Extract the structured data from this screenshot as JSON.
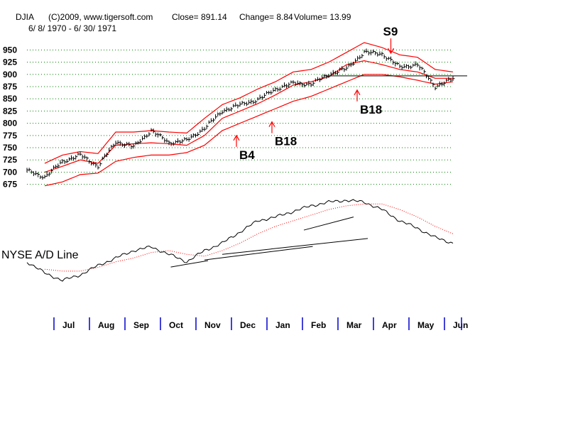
{
  "header": {
    "ticker": "DJIA",
    "source": "(C)2009, www.tigersoft.com",
    "close": "Close=  891.14",
    "change": "Change= 8.84",
    "volume": "Volume= 13.99",
    "date_range": "6/ 8/ 1970 - 6/ 30/ 1971"
  },
  "ad_line_label": "NYSE A/D Line",
  "colors": {
    "price": "#000000",
    "band": "#ff0000",
    "grid": "#008000",
    "month_tick": "#0000cc",
    "trendline": "#000000"
  },
  "chart_data": [
    {
      "type": "line",
      "name": "DJIA",
      "ylim": [
        660,
        965
      ],
      "yticks": [
        675,
        700,
        725,
        750,
        775,
        800,
        825,
        850,
        875,
        900,
        925,
        950
      ],
      "grid": "horizontal dotted",
      "x_months": [
        "Jul",
        "Aug",
        "Sep",
        "Oct",
        "Nov",
        "Dec",
        "Jan",
        "Feb",
        "Mar",
        "Apr",
        "May",
        "Jun"
      ],
      "x": [
        "Jun",
        "Jul",
        "Jul",
        "Aug",
        "Aug",
        "Sep",
        "Sep",
        "Oct",
        "Oct",
        "Nov",
        "Nov",
        "Dec",
        "Dec",
        "Jan",
        "Jan",
        "Feb",
        "Feb",
        "Mar",
        "Mar",
        "Apr",
        "Apr",
        "May",
        "May",
        "Jun",
        "Jun"
      ],
      "x_pos": [
        0.0,
        0.5,
        1.0,
        1.5,
        2.0,
        2.5,
        3.0,
        3.5,
        4.0,
        4.5,
        5.0,
        5.5,
        6.0,
        6.5,
        7.0,
        7.5,
        8.0,
        8.5,
        9.0,
        9.5,
        10.0,
        10.5,
        11.0,
        11.5,
        12.0
      ],
      "close": [
        703,
        690,
        722,
        735,
        712,
        762,
        752,
        785,
        760,
        765,
        790,
        825,
        838,
        848,
        870,
        882,
        880,
        900,
        912,
        945,
        942,
        915,
        920,
        875,
        891.14
      ],
      "upper_band": [
        null,
        718,
        735,
        742,
        738,
        782,
        782,
        785,
        782,
        780,
        810,
        838,
        852,
        870,
        885,
        905,
        910,
        925,
        945,
        965,
        955,
        940,
        935,
        910,
        905
      ],
      "middle_band": [
        null,
        700,
        712,
        725,
        718,
        755,
        758,
        760,
        758,
        755,
        775,
        810,
        825,
        840,
        858,
        878,
        885,
        895,
        920,
        928,
        920,
        910,
        905,
        892,
        892
      ],
      "lower_band": [
        null,
        672,
        680,
        695,
        698,
        722,
        730,
        735,
        735,
        740,
        755,
        785,
        800,
        815,
        830,
        845,
        855,
        870,
        885,
        900,
        900,
        895,
        888,
        880,
        885
      ],
      "reference_line": 897,
      "annotations": [
        {
          "label": "S9",
          "x_pos": 10.25,
          "y": 962,
          "direction": "down"
        },
        {
          "label": "B4",
          "x_pos": 5.9,
          "y": 775,
          "direction": "up"
        },
        {
          "label": "B18",
          "x_pos": 6.9,
          "y": 803,
          "direction": "up"
        },
        {
          "label": "B18",
          "x_pos": 9.3,
          "y": 868,
          "direction": "up"
        }
      ]
    },
    {
      "type": "line",
      "name": "NYSE A/D Line",
      "x_pos": [
        0.0,
        0.5,
        1.0,
        1.5,
        2.0,
        2.5,
        3.0,
        3.5,
        4.0,
        4.5,
        5.0,
        5.5,
        6.0,
        6.5,
        7.0,
        7.5,
        8.0,
        8.5,
        9.0,
        9.5,
        10.0,
        10.5,
        11.0,
        11.5,
        12.0
      ],
      "values": [
        10,
        4,
        0,
        3,
        8,
        12,
        16,
        18,
        14,
        10,
        16,
        20,
        26,
        32,
        34,
        37,
        40,
        42,
        43,
        42,
        38,
        32,
        28,
        23,
        20
      ],
      "average": [
        null,
        6,
        5,
        5,
        7,
        10,
        12,
        15,
        16,
        14,
        13,
        16,
        20,
        25,
        29,
        32,
        35,
        38,
        40,
        41,
        41,
        38,
        34,
        29,
        25
      ]
    }
  ]
}
